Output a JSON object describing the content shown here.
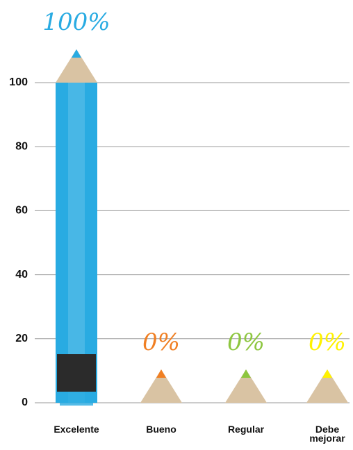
{
  "chart_data": {
    "type": "bar",
    "categories": [
      "Excelente",
      "Bueno",
      "Regular",
      "Debe mejorar"
    ],
    "values": [
      100,
      0,
      0,
      0
    ],
    "value_labels": [
      "100%",
      "0%",
      "0%",
      "0%"
    ],
    "colors": [
      "#29abe2",
      "#f07f23",
      "#8dc63f",
      "#fff200"
    ],
    "ylim": [
      0,
      100
    ],
    "yticks": [
      0,
      20,
      40,
      60,
      80,
      100
    ],
    "grid": true
  }
}
